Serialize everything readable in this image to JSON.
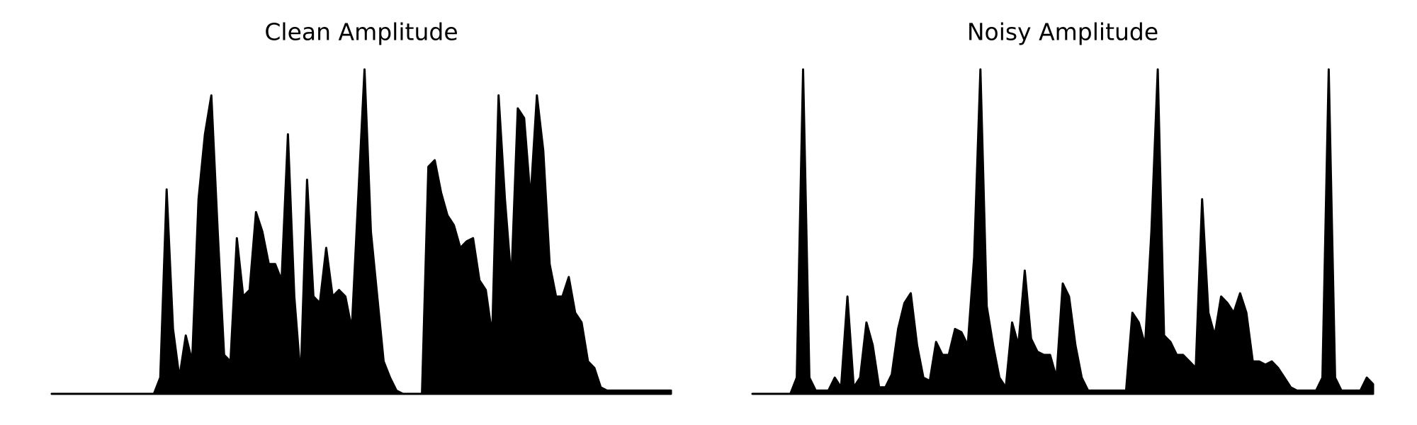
{
  "chart_data": [
    {
      "type": "area",
      "title": "Clean Amplitude",
      "color": "#000000",
      "values": [
        0,
        0,
        0,
        0,
        0,
        0,
        0,
        0,
        0,
        0,
        0,
        0,
        0,
        0,
        0,
        0,
        0,
        0.05,
        0.63,
        0.2,
        0.05,
        0.18,
        0.1,
        0.6,
        0.8,
        0.92,
        0.5,
        0.12,
        0.1,
        0.48,
        0.3,
        0.32,
        0.56,
        0.5,
        0.4,
        0.4,
        0.35,
        0.8,
        0.3,
        0.05,
        0.66,
        0.3,
        0.28,
        0.45,
        0.3,
        0.32,
        0.3,
        0.2,
        0.6,
        1.0,
        0.5,
        0.3,
        0.1,
        0.05,
        0.01,
        0,
        0,
        0,
        0,
        0.7,
        0.72,
        0.62,
        0.55,
        0.52,
        0.45,
        0.47,
        0.48,
        0.35,
        0.32,
        0.18,
        0.92,
        0.6,
        0.35,
        0.88,
        0.85,
        0.6,
        0.92,
        0.75,
        0.4,
        0.3,
        0.3,
        0.36,
        0.25,
        0.22,
        0.1,
        0.08,
        0.02,
        0.01,
        0.01,
        0.01,
        0.01,
        0.01,
        0.01,
        0.01,
        0.01,
        0.01,
        0.01,
        0.01
      ]
    },
    {
      "type": "area",
      "title": "Noisy Amplitude",
      "color": "#000000",
      "values": [
        0,
        0,
        0,
        0,
        0,
        0,
        0,
        0.05,
        1.0,
        0.05,
        0.01,
        0.01,
        0.01,
        0.05,
        0.02,
        0.3,
        0.02,
        0.05,
        0.22,
        0.15,
        0.02,
        0.02,
        0.06,
        0.2,
        0.28,
        0.31,
        0.15,
        0.05,
        0.04,
        0.16,
        0.12,
        0.12,
        0.2,
        0.19,
        0.15,
        0.42,
        1.0,
        0.27,
        0.15,
        0.05,
        0.02,
        0.22,
        0.15,
        0.38,
        0.17,
        0.13,
        0.12,
        0.12,
        0.05,
        0.34,
        0.3,
        0.15,
        0.05,
        0.01,
        0.01,
        0.01,
        0.01,
        0.01,
        0.01,
        0.01,
        0.25,
        0.22,
        0.15,
        0.5,
        1.0,
        0.18,
        0.16,
        0.12,
        0.12,
        0.1,
        0.08,
        0.6,
        0.25,
        0.18,
        0.3,
        0.28,
        0.25,
        0.31,
        0.25,
        0.1,
        0.1,
        0.09,
        0.1,
        0.08,
        0.05,
        0.02,
        0.01,
        0.01,
        0.01,
        0.01,
        0.05,
        1.0,
        0.05,
        0.01,
        0.01,
        0.01,
        0.01,
        0.05,
        0.03
      ]
    }
  ]
}
